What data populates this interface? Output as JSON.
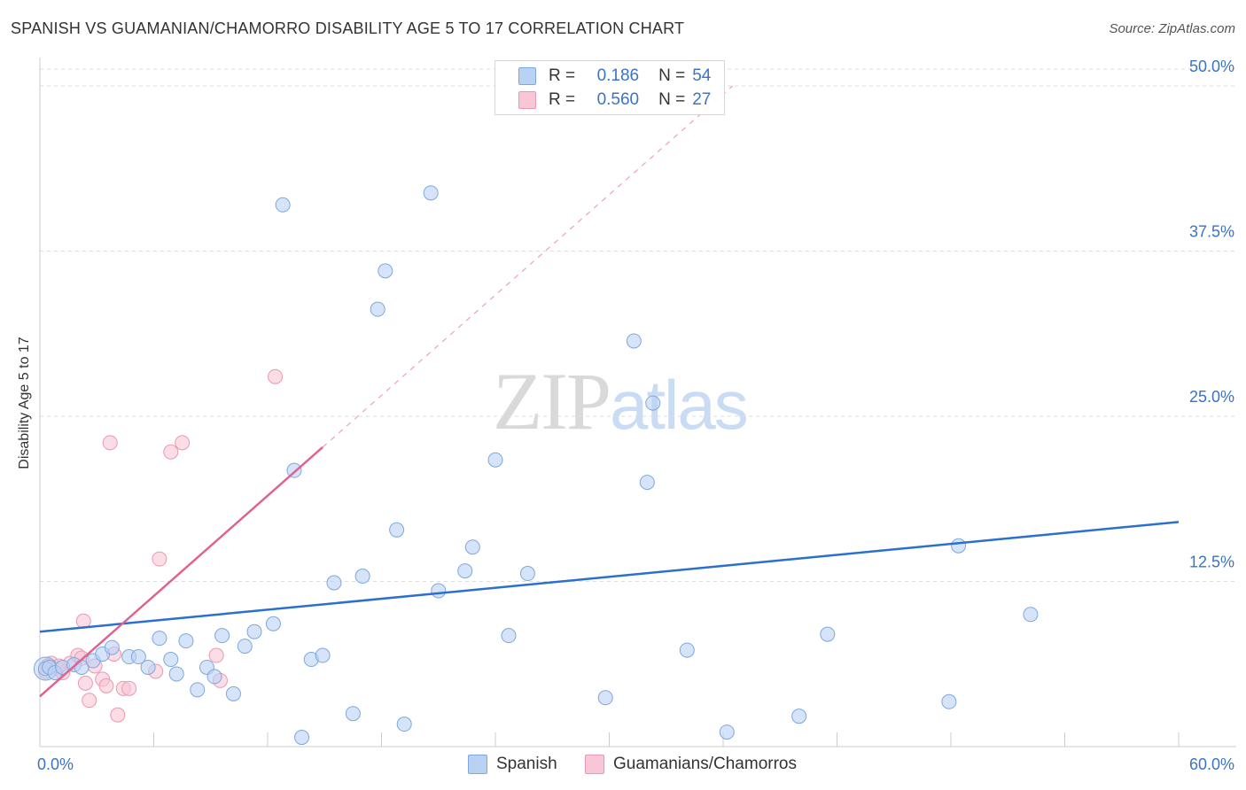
{
  "header": {
    "title": "SPANISH VS GUAMANIAN/CHAMORRO DISABILITY AGE 5 TO 17 CORRELATION CHART",
    "source": "Source: ZipAtlas.com"
  },
  "watermark": {
    "zip": "ZIP",
    "atlas": "atlas"
  },
  "legend": {
    "rows": [
      {
        "r_label": "R =",
        "r_value": "0.186",
        "n_label": "N =",
        "n_value": "54"
      },
      {
        "r_label": "R =",
        "r_value": "0.560",
        "n_label": "N =",
        "n_value": "27"
      }
    ]
  },
  "bottom_legend": {
    "spanish": "Spanish",
    "guamanian": "Guamanians/Chamorros"
  },
  "colors": {
    "spanish_fill": "#b9d2f3",
    "spanish_stroke": "#7fa7dc",
    "spanish_line": "#2b6fcf",
    "guam_fill": "#f8c6d5",
    "guam_stroke": "#ec97b2",
    "guam_line": "#e0628f",
    "tick_text": "#3a73c8",
    "grid": "#dddddd"
  },
  "chart_data": {
    "type": "scatter",
    "title": "SPANISH VS GUAMANIAN/CHAMORRO DISABILITY AGE 5 TO 17 CORRELATION CHART",
    "xlabel": "",
    "ylabel": "Disability Age 5 to 17",
    "xlim": [
      0,
      60
    ],
    "ylim": [
      0,
      52
    ],
    "x_tick_labels": [
      "0.0%",
      "60.0%"
    ],
    "y_ticks": [
      12.5,
      25.0,
      37.5,
      50.0
    ],
    "y_tick_labels": [
      "12.5%",
      "25.0%",
      "37.5%",
      "50.0%"
    ],
    "grid": true,
    "series": [
      {
        "name": "Spanish",
        "R": 0.186,
        "N": 54,
        "trend": {
          "x": [
            0,
            60
          ],
          "y": [
            8.7,
            17.0
          ],
          "style": "solid"
        },
        "points": [
          [
            0.3,
            5.9
          ],
          [
            0.5,
            6.0
          ],
          [
            0.8,
            5.6
          ],
          [
            1.2,
            6.0
          ],
          [
            1.8,
            6.2
          ],
          [
            2.2,
            6.0
          ],
          [
            2.8,
            6.5
          ],
          [
            3.3,
            7.0
          ],
          [
            3.8,
            7.5
          ],
          [
            4.7,
            6.8
          ],
          [
            5.2,
            6.8
          ],
          [
            5.7,
            6.0
          ],
          [
            6.3,
            8.2
          ],
          [
            6.9,
            6.6
          ],
          [
            7.2,
            5.5
          ],
          [
            7.7,
            8.0
          ],
          [
            8.3,
            4.3
          ],
          [
            8.8,
            6.0
          ],
          [
            9.2,
            5.3
          ],
          [
            9.6,
            8.4
          ],
          [
            10.2,
            4.0
          ],
          [
            10.8,
            7.6
          ],
          [
            11.3,
            8.7
          ],
          [
            12.3,
            9.3
          ],
          [
            12.8,
            41.0
          ],
          [
            13.4,
            20.9
          ],
          [
            13.8,
            0.7
          ],
          [
            14.3,
            6.6
          ],
          [
            14.9,
            6.9
          ],
          [
            15.5,
            12.4
          ],
          [
            16.5,
            2.5
          ],
          [
            17.0,
            12.9
          ],
          [
            17.8,
            33.1
          ],
          [
            18.2,
            36.0
          ],
          [
            18.8,
            16.4
          ],
          [
            19.2,
            1.7
          ],
          [
            20.6,
            41.9
          ],
          [
            21.0,
            11.8
          ],
          [
            22.4,
            13.3
          ],
          [
            22.8,
            15.1
          ],
          [
            24.0,
            21.7
          ],
          [
            24.7,
            8.4
          ],
          [
            25.7,
            13.1
          ],
          [
            29.8,
            3.7
          ],
          [
            31.3,
            30.7
          ],
          [
            32.0,
            20.0
          ],
          [
            32.3,
            26.0
          ],
          [
            34.1,
            7.3
          ],
          [
            36.2,
            1.1
          ],
          [
            40.0,
            2.3
          ],
          [
            41.5,
            8.5
          ],
          [
            47.9,
            3.4
          ],
          [
            48.4,
            15.2
          ],
          [
            52.2,
            10.0
          ]
        ]
      },
      {
        "name": "Guamanians/Chamorros",
        "R": 0.56,
        "N": 27,
        "trend": {
          "x": [
            0,
            36.5
          ],
          "y": [
            3.8,
            50.0
          ],
          "solid_until_x": 14.9
        },
        "points": [
          [
            0.3,
            5.7
          ],
          [
            0.6,
            6.3
          ],
          [
            0.9,
            5.9
          ],
          [
            1.2,
            5.6
          ],
          [
            1.6,
            6.3
          ],
          [
            2.0,
            6.9
          ],
          [
            2.2,
            6.7
          ],
          [
            2.4,
            4.8
          ],
          [
            2.6,
            3.5
          ],
          [
            2.9,
            6.1
          ],
          [
            3.3,
            5.1
          ],
          [
            3.5,
            4.6
          ],
          [
            3.7,
            23.0
          ],
          [
            3.9,
            7.0
          ],
          [
            4.1,
            2.4
          ],
          [
            4.4,
            4.4
          ],
          [
            4.7,
            4.4
          ],
          [
            6.1,
            5.7
          ],
          [
            6.3,
            14.2
          ],
          [
            6.9,
            22.3
          ],
          [
            7.5,
            23.0
          ],
          [
            9.3,
            6.9
          ],
          [
            9.5,
            5.0
          ],
          [
            12.4,
            28.0
          ],
          [
            2.3,
            9.5
          ],
          [
            1.0,
            6.1
          ],
          [
            0.4,
            6.1
          ]
        ]
      }
    ]
  }
}
